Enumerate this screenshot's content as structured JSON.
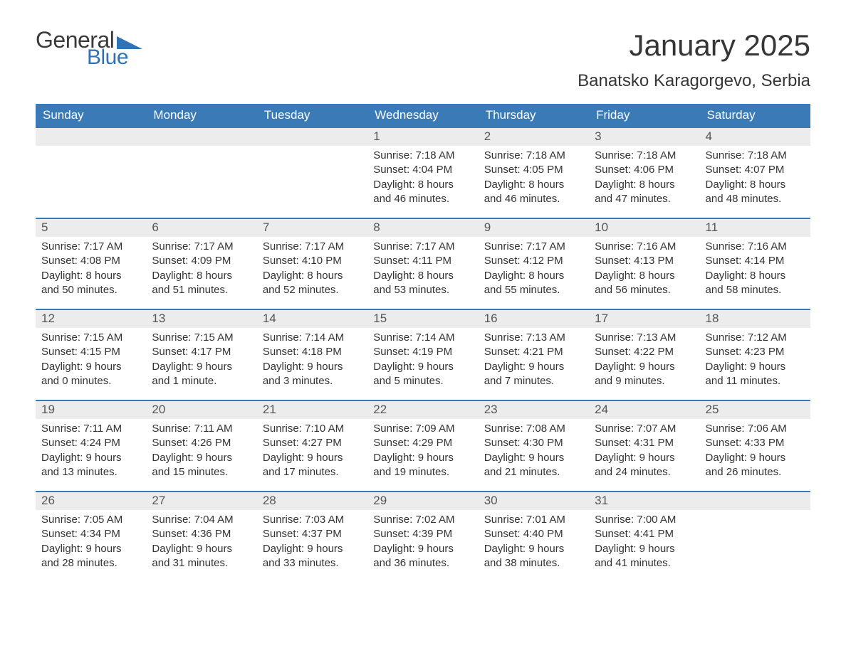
{
  "logo": {
    "text1": "General",
    "text2": "Blue"
  },
  "title": "January 2025",
  "location": "Banatsko Karagorgevo, Serbia",
  "colors": {
    "header_bg": "#3a7ab7",
    "header_text": "#ffffff",
    "daynum_bg": "#ececec",
    "daynum_text": "#555555",
    "body_text": "#333333",
    "logo_blue": "#2f72b6",
    "week_border": "#3a7ab7",
    "page_bg": "#ffffff"
  },
  "fonts": {
    "title_size_pt": 32,
    "location_size_pt": 18,
    "header_size_pt": 13,
    "body_size_pt": 11
  },
  "day_headers": [
    "Sunday",
    "Monday",
    "Tuesday",
    "Wednesday",
    "Thursday",
    "Friday",
    "Saturday"
  ],
  "weeks": [
    [
      {
        "num": "",
        "sunrise": "",
        "sunset": "",
        "daylight": ""
      },
      {
        "num": "",
        "sunrise": "",
        "sunset": "",
        "daylight": ""
      },
      {
        "num": "",
        "sunrise": "",
        "sunset": "",
        "daylight": ""
      },
      {
        "num": "1",
        "sunrise": "Sunrise: 7:18 AM",
        "sunset": "Sunset: 4:04 PM",
        "daylight": "Daylight: 8 hours and 46 minutes."
      },
      {
        "num": "2",
        "sunrise": "Sunrise: 7:18 AM",
        "sunset": "Sunset: 4:05 PM",
        "daylight": "Daylight: 8 hours and 46 minutes."
      },
      {
        "num": "3",
        "sunrise": "Sunrise: 7:18 AM",
        "sunset": "Sunset: 4:06 PM",
        "daylight": "Daylight: 8 hours and 47 minutes."
      },
      {
        "num": "4",
        "sunrise": "Sunrise: 7:18 AM",
        "sunset": "Sunset: 4:07 PM",
        "daylight": "Daylight: 8 hours and 48 minutes."
      }
    ],
    [
      {
        "num": "5",
        "sunrise": "Sunrise: 7:17 AM",
        "sunset": "Sunset: 4:08 PM",
        "daylight": "Daylight: 8 hours and 50 minutes."
      },
      {
        "num": "6",
        "sunrise": "Sunrise: 7:17 AM",
        "sunset": "Sunset: 4:09 PM",
        "daylight": "Daylight: 8 hours and 51 minutes."
      },
      {
        "num": "7",
        "sunrise": "Sunrise: 7:17 AM",
        "sunset": "Sunset: 4:10 PM",
        "daylight": "Daylight: 8 hours and 52 minutes."
      },
      {
        "num": "8",
        "sunrise": "Sunrise: 7:17 AM",
        "sunset": "Sunset: 4:11 PM",
        "daylight": "Daylight: 8 hours and 53 minutes."
      },
      {
        "num": "9",
        "sunrise": "Sunrise: 7:17 AM",
        "sunset": "Sunset: 4:12 PM",
        "daylight": "Daylight: 8 hours and 55 minutes."
      },
      {
        "num": "10",
        "sunrise": "Sunrise: 7:16 AM",
        "sunset": "Sunset: 4:13 PM",
        "daylight": "Daylight: 8 hours and 56 minutes."
      },
      {
        "num": "11",
        "sunrise": "Sunrise: 7:16 AM",
        "sunset": "Sunset: 4:14 PM",
        "daylight": "Daylight: 8 hours and 58 minutes."
      }
    ],
    [
      {
        "num": "12",
        "sunrise": "Sunrise: 7:15 AM",
        "sunset": "Sunset: 4:15 PM",
        "daylight": "Daylight: 9 hours and 0 minutes."
      },
      {
        "num": "13",
        "sunrise": "Sunrise: 7:15 AM",
        "sunset": "Sunset: 4:17 PM",
        "daylight": "Daylight: 9 hours and 1 minute."
      },
      {
        "num": "14",
        "sunrise": "Sunrise: 7:14 AM",
        "sunset": "Sunset: 4:18 PM",
        "daylight": "Daylight: 9 hours and 3 minutes."
      },
      {
        "num": "15",
        "sunrise": "Sunrise: 7:14 AM",
        "sunset": "Sunset: 4:19 PM",
        "daylight": "Daylight: 9 hours and 5 minutes."
      },
      {
        "num": "16",
        "sunrise": "Sunrise: 7:13 AM",
        "sunset": "Sunset: 4:21 PM",
        "daylight": "Daylight: 9 hours and 7 minutes."
      },
      {
        "num": "17",
        "sunrise": "Sunrise: 7:13 AM",
        "sunset": "Sunset: 4:22 PM",
        "daylight": "Daylight: 9 hours and 9 minutes."
      },
      {
        "num": "18",
        "sunrise": "Sunrise: 7:12 AM",
        "sunset": "Sunset: 4:23 PM",
        "daylight": "Daylight: 9 hours and 11 minutes."
      }
    ],
    [
      {
        "num": "19",
        "sunrise": "Sunrise: 7:11 AM",
        "sunset": "Sunset: 4:24 PM",
        "daylight": "Daylight: 9 hours and 13 minutes."
      },
      {
        "num": "20",
        "sunrise": "Sunrise: 7:11 AM",
        "sunset": "Sunset: 4:26 PM",
        "daylight": "Daylight: 9 hours and 15 minutes."
      },
      {
        "num": "21",
        "sunrise": "Sunrise: 7:10 AM",
        "sunset": "Sunset: 4:27 PM",
        "daylight": "Daylight: 9 hours and 17 minutes."
      },
      {
        "num": "22",
        "sunrise": "Sunrise: 7:09 AM",
        "sunset": "Sunset: 4:29 PM",
        "daylight": "Daylight: 9 hours and 19 minutes."
      },
      {
        "num": "23",
        "sunrise": "Sunrise: 7:08 AM",
        "sunset": "Sunset: 4:30 PM",
        "daylight": "Daylight: 9 hours and 21 minutes."
      },
      {
        "num": "24",
        "sunrise": "Sunrise: 7:07 AM",
        "sunset": "Sunset: 4:31 PM",
        "daylight": "Daylight: 9 hours and 24 minutes."
      },
      {
        "num": "25",
        "sunrise": "Sunrise: 7:06 AM",
        "sunset": "Sunset: 4:33 PM",
        "daylight": "Daylight: 9 hours and 26 minutes."
      }
    ],
    [
      {
        "num": "26",
        "sunrise": "Sunrise: 7:05 AM",
        "sunset": "Sunset: 4:34 PM",
        "daylight": "Daylight: 9 hours and 28 minutes."
      },
      {
        "num": "27",
        "sunrise": "Sunrise: 7:04 AM",
        "sunset": "Sunset: 4:36 PM",
        "daylight": "Daylight: 9 hours and 31 minutes."
      },
      {
        "num": "28",
        "sunrise": "Sunrise: 7:03 AM",
        "sunset": "Sunset: 4:37 PM",
        "daylight": "Daylight: 9 hours and 33 minutes."
      },
      {
        "num": "29",
        "sunrise": "Sunrise: 7:02 AM",
        "sunset": "Sunset: 4:39 PM",
        "daylight": "Daylight: 9 hours and 36 minutes."
      },
      {
        "num": "30",
        "sunrise": "Sunrise: 7:01 AM",
        "sunset": "Sunset: 4:40 PM",
        "daylight": "Daylight: 9 hours and 38 minutes."
      },
      {
        "num": "31",
        "sunrise": "Sunrise: 7:00 AM",
        "sunset": "Sunset: 4:41 PM",
        "daylight": "Daylight: 9 hours and 41 minutes."
      },
      {
        "num": "",
        "sunrise": "",
        "sunset": "",
        "daylight": ""
      }
    ]
  ]
}
